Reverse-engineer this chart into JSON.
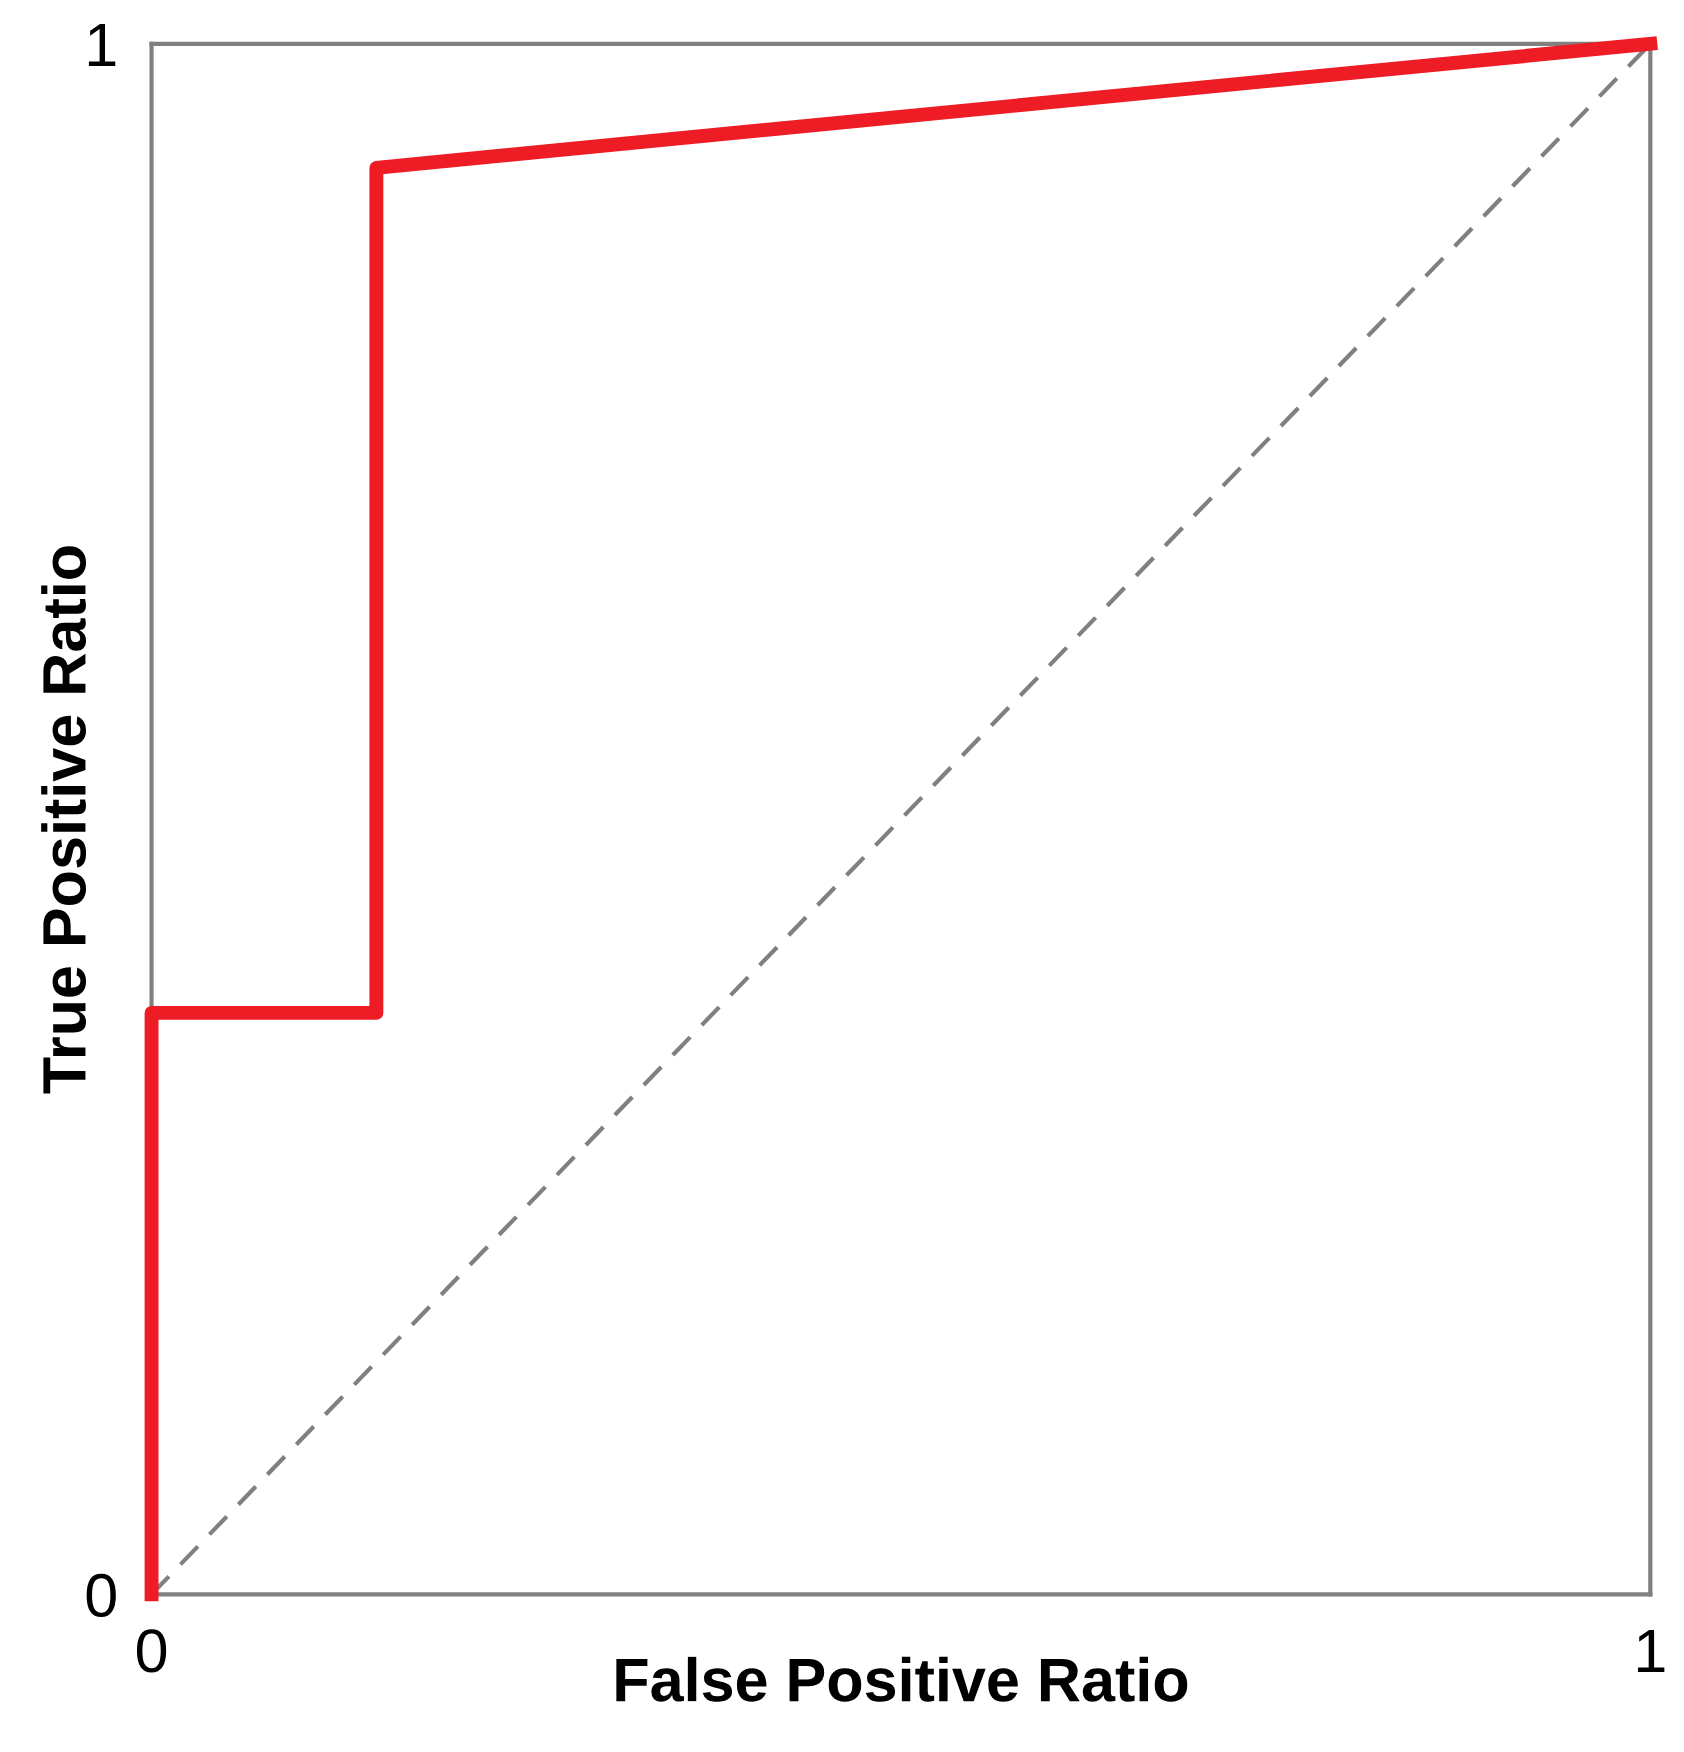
{
  "chart_data": {
    "type": "line",
    "xlabel": "False Positive Ratio",
    "ylabel": "True Positive Ratio",
    "xlim": [
      0,
      1
    ],
    "ylim": [
      0,
      1
    ],
    "xticks": [
      0,
      1
    ],
    "yticks": [
      0,
      1
    ],
    "marker": "none",
    "series": [
      {
        "color": "#ee1c25",
        "x": [
          0,
          0,
          0.15,
          0.15,
          1
        ],
        "values": [
          0,
          0.375,
          0.375,
          0.92,
          1
        ],
        "line_style": "solid"
      },
      {
        "color": "#808080",
        "x": [
          0,
          1
        ],
        "values": [
          0,
          1
        ],
        "line_style": "dashed"
      }
    ]
  }
}
